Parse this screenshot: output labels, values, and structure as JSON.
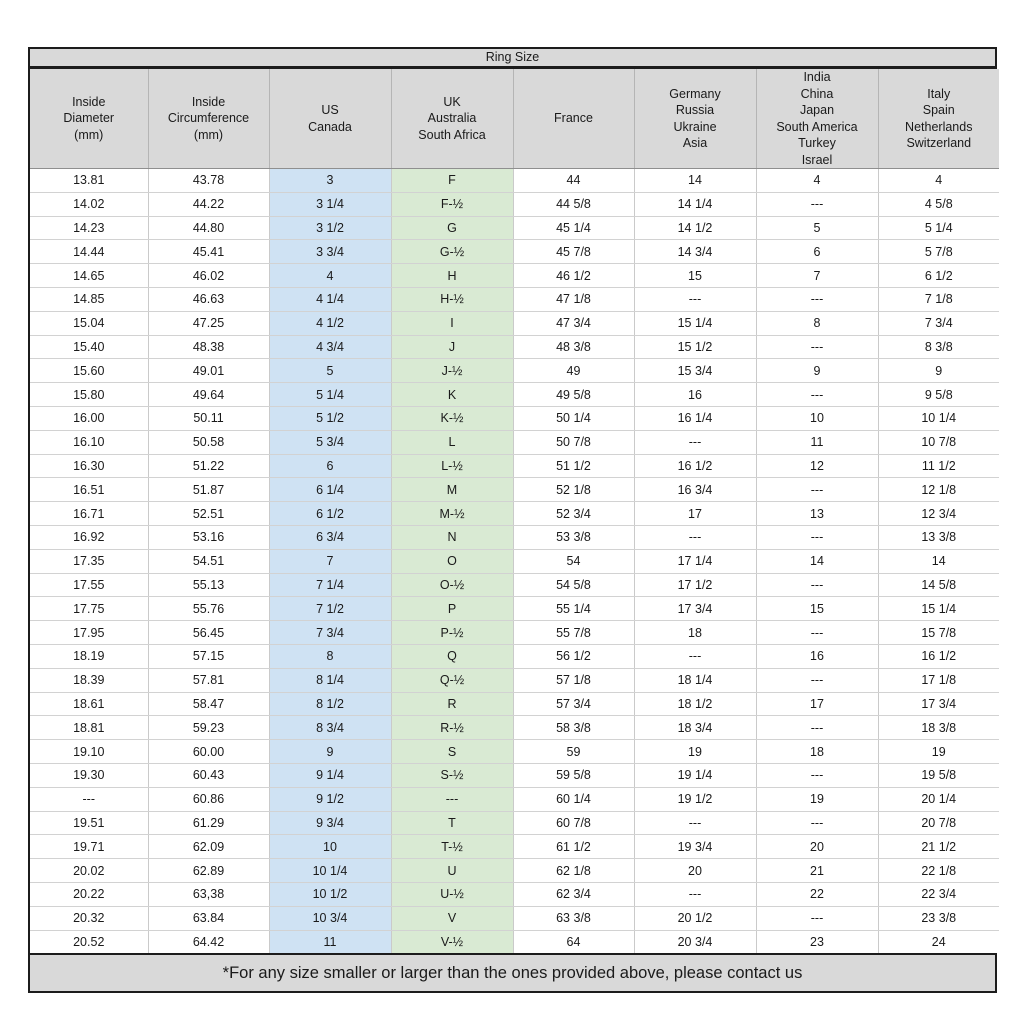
{
  "title": "Ring Size",
  "columns": [
    {
      "id": "inside-diameter",
      "label": "Inside\nDiameter\n(mm)"
    },
    {
      "id": "inside-circumference",
      "label": "Inside\nCircumference\n(mm)"
    },
    {
      "id": "us-canada",
      "label": "US\nCanada"
    },
    {
      "id": "uk-australia-south-africa",
      "label": "UK\nAustralia\nSouth Africa"
    },
    {
      "id": "france",
      "label": "France"
    },
    {
      "id": "germany-russia-ukraine-asia",
      "label": "Germany\nRussia\nUkraine\nAsia"
    },
    {
      "id": "india-china-japan-south-america-turkey-israel",
      "label": "India\nChina\nJapan\nSouth America\nTurkey\nIsrael"
    },
    {
      "id": "italy-spain-netherlands-switzerland",
      "label": "Italy\nSpain\nNetherlands\nSwitzerland"
    }
  ],
  "rows": [
    [
      "13.81",
      "43.78",
      "3",
      "F",
      "44",
      "14",
      "4",
      "4"
    ],
    [
      "14.02",
      "44.22",
      "3 1/4",
      "F-½",
      "44 5/8",
      "14 1/4",
      "---",
      "4 5/8"
    ],
    [
      "14.23",
      "44.80",
      "3 1/2",
      "G",
      "45 1/4",
      "14 1/2",
      "5",
      "5 1/4"
    ],
    [
      "14.44",
      "45.41",
      "3 3/4",
      "G-½",
      "45 7/8",
      "14 3/4",
      "6",
      "5 7/8"
    ],
    [
      "14.65",
      "46.02",
      "4",
      "H",
      "46 1/2",
      "15",
      "7",
      "6 1/2"
    ],
    [
      "14.85",
      "46.63",
      "4 1/4",
      "H-½",
      "47 1/8",
      "---",
      "---",
      "7 1/8"
    ],
    [
      "15.04",
      "47.25",
      "4 1/2",
      "I",
      "47 3/4",
      "15 1/4",
      "8",
      "7 3/4"
    ],
    [
      "15.40",
      "48.38",
      "4 3/4",
      "J",
      "48 3/8",
      "15 1/2",
      "---",
      "8 3/8"
    ],
    [
      "15.60",
      "49.01",
      "5",
      "J-½",
      "49",
      "15 3/4",
      "9",
      "9"
    ],
    [
      "15.80",
      "49.64",
      "5 1/4",
      "K",
      "49 5/8",
      "16",
      "---",
      "9 5/8"
    ],
    [
      "16.00",
      "50.11",
      "5 1/2",
      "K-½",
      "50 1/4",
      "16 1/4",
      "10",
      "10 1/4"
    ],
    [
      "16.10",
      "50.58",
      "5 3/4",
      "L",
      "50 7/8",
      "---",
      "11",
      "10 7/8"
    ],
    [
      "16.30",
      "51.22",
      "6",
      "L-½",
      "51 1/2",
      "16 1/2",
      "12",
      "11 1/2"
    ],
    [
      "16.51",
      "51.87",
      "6 1/4",
      "M",
      "52 1/8",
      "16 3/4",
      "---",
      "12 1/8"
    ],
    [
      "16.71",
      "52.51",
      "6 1/2",
      "M-½",
      "52 3/4",
      "17",
      "13",
      "12 3/4"
    ],
    [
      "16.92",
      "53.16",
      "6 3/4",
      "N",
      "53 3/8",
      "---",
      "---",
      "13 3/8"
    ],
    [
      "17.35",
      "54.51",
      "7",
      "O",
      "54",
      "17 1/4",
      "14",
      "14"
    ],
    [
      "17.55",
      "55.13",
      "7 1/4",
      "O-½",
      "54 5/8",
      "17 1/2",
      "---",
      "14 5/8"
    ],
    [
      "17.75",
      "55.76",
      "7 1/2",
      "P",
      "55 1/4",
      "17 3/4",
      "15",
      "15 1/4"
    ],
    [
      "17.95",
      "56.45",
      "7 3/4",
      "P-½",
      "55 7/8",
      "18",
      "---",
      "15 7/8"
    ],
    [
      "18.19",
      "57.15",
      "8",
      "Q",
      "56 1/2",
      "---",
      "16",
      "16 1/2"
    ],
    [
      "18.39",
      "57.81",
      "8 1/4",
      "Q-½",
      "57 1/8",
      "18 1/4",
      "---",
      "17 1/8"
    ],
    [
      "18.61",
      "58.47",
      "8 1/2",
      "R",
      "57 3/4",
      "18 1/2",
      "17",
      "17 3/4"
    ],
    [
      "18.81",
      "59.23",
      "8 3/4",
      "R-½",
      "58 3/8",
      "18 3/4",
      "---",
      "18 3/8"
    ],
    [
      "19.10",
      "60.00",
      "9",
      "S",
      "59",
      "19",
      "18",
      "19"
    ],
    [
      "19.30",
      "60.43",
      "9 1/4",
      "S-½",
      "59 5/8",
      "19 1/4",
      "---",
      "19 5/8"
    ],
    [
      "---",
      "60.86",
      "9 1/2",
      "---",
      "60 1/4",
      "19 1/2",
      "19",
      "20 1/4"
    ],
    [
      "19.51",
      "61.29",
      "9 3/4",
      "T",
      "60 7/8",
      "---",
      "---",
      "20 7/8"
    ],
    [
      "19.71",
      "62.09",
      "10",
      "T-½",
      "61 1/2",
      "19 3/4",
      "20",
      "21 1/2"
    ],
    [
      "20.02",
      "62.89",
      "10 1/4",
      "U",
      "62 1/8",
      "20",
      "21",
      "22 1/8"
    ],
    [
      "20.22",
      "63,38",
      "10 1/2",
      "U-½",
      "62 3/4",
      "---",
      "22",
      "22 3/4"
    ],
    [
      "20.32",
      "63.84",
      "10 3/4",
      "V",
      "63 3/8",
      "20 1/2",
      "---",
      "23 3/8"
    ],
    [
      "20.52",
      "64.42",
      "11",
      "V-½",
      "64",
      "20 3/4",
      "23",
      "24"
    ]
  ],
  "footer_note": "*For any size smaller or larger than the ones provided above, please contact us",
  "colors": {
    "header_bg": "#d9d9d9",
    "footer_bg": "#d9d9d9",
    "us_canada_bg": "#cfe2f3",
    "uk_bg": "#d9ead3"
  }
}
